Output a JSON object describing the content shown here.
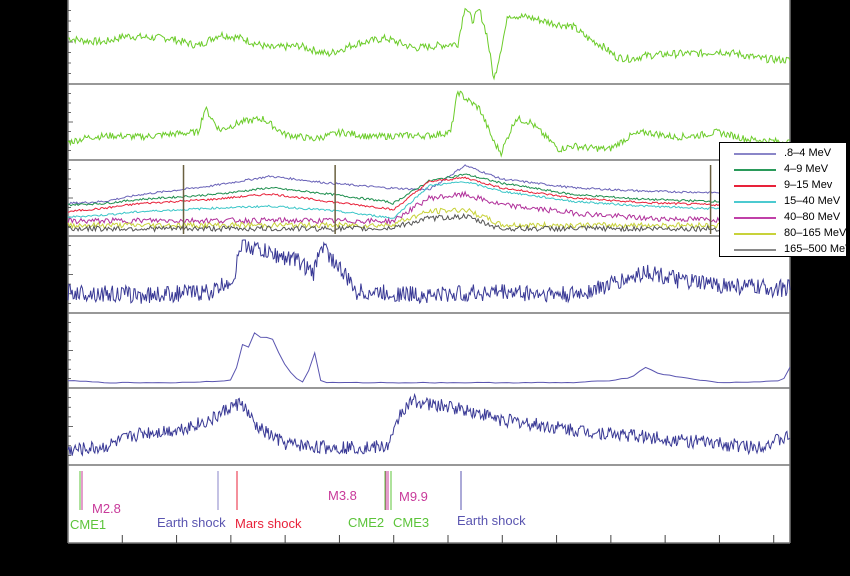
{
  "chart_data": [
    {
      "type": "line",
      "panel": 1,
      "title": "",
      "xlabel": "",
      "ylabel": "",
      "description": "Top panel: time series colored green/blue/black segments; sharp spike near x≈0.55 of axis",
      "colors": [
        "#6ccc2a",
        "#4a4a9a",
        "#111111",
        "#e8e000"
      ],
      "x": [
        0,
        0.02,
        0.05,
        0.08,
        0.11,
        0.14,
        0.18,
        0.21,
        0.24,
        0.26,
        0.28,
        0.32,
        0.36,
        0.4,
        0.44,
        0.48,
        0.52,
        0.54,
        0.55,
        0.56,
        0.57,
        0.58,
        0.59,
        0.61,
        0.64,
        0.67,
        0.7,
        0.72,
        0.74,
        0.76,
        0.78,
        0.8,
        0.83,
        0.86,
        0.88,
        0.9,
        0.93,
        0.96,
        1.0
      ],
      "y": [
        0.55,
        0.52,
        0.5,
        0.58,
        0.56,
        0.55,
        0.45,
        0.6,
        0.55,
        0.48,
        0.42,
        0.45,
        0.34,
        0.48,
        0.55,
        0.42,
        0.46,
        0.48,
        0.98,
        0.78,
        0.92,
        0.6,
        0.0,
        0.86,
        0.82,
        0.75,
        0.7,
        0.55,
        0.45,
        0.3,
        0.28,
        0.32,
        0.34,
        0.35,
        0.35,
        0.38,
        0.34,
        0.28,
        0.26
      ]
    },
    {
      "type": "line",
      "panel": 2,
      "description": "Second panel: similar multi-color series with peak near x≈0.55",
      "colors": [
        "#6ccc2a",
        "#4a4a9a",
        "#111111"
      ],
      "x": [
        0,
        0.03,
        0.06,
        0.1,
        0.14,
        0.18,
        0.19,
        0.21,
        0.24,
        0.27,
        0.3,
        0.34,
        0.38,
        0.42,
        0.46,
        0.5,
        0.53,
        0.54,
        0.55,
        0.57,
        0.59,
        0.6,
        0.62,
        0.64,
        0.66,
        0.68,
        0.7,
        0.72,
        0.75,
        0.78,
        0.8,
        0.84,
        0.87,
        0.9,
        0.94,
        1.0
      ],
      "y": [
        0.2,
        0.28,
        0.3,
        0.28,
        0.32,
        0.35,
        0.7,
        0.38,
        0.5,
        0.55,
        0.32,
        0.25,
        0.35,
        0.28,
        0.3,
        0.3,
        0.35,
        0.95,
        0.85,
        0.7,
        0.2,
        0.05,
        0.55,
        0.5,
        0.3,
        0.1,
        0.15,
        0.12,
        0.1,
        0.3,
        0.35,
        0.28,
        0.3,
        0.35,
        0.25,
        0.2
      ]
    },
    {
      "type": "line",
      "panel": 3,
      "description": "Third panel: particle intensities by energy channel",
      "legend": [
        ".8–4 MeV",
        "4–9 MeV",
        "9–15 Mev",
        "15–40 MeV",
        "40–80 MeV",
        "80–165 MeV",
        "165–500 MeV"
      ],
      "series": [
        {
          "name": ".8–4 MeV",
          "color": "#6a63b8",
          "x": [
            0,
            0.05,
            0.1,
            0.2,
            0.28,
            0.36,
            0.44,
            0.5,
            0.55,
            0.6,
            0.7,
            0.8,
            0.9,
            1.0
          ],
          "y": [
            0.42,
            0.45,
            0.55,
            0.68,
            0.82,
            0.72,
            0.65,
            0.62,
            0.98,
            0.78,
            0.65,
            0.6,
            0.58,
            0.5
          ]
        },
        {
          "name": "4–9 MeV",
          "color": "#1f8f4e",
          "x": [
            0,
            0.05,
            0.1,
            0.2,
            0.28,
            0.36,
            0.44,
            0.45,
            0.5,
            0.55,
            0.6,
            0.7,
            0.8,
            0.9,
            1.0
          ],
          "y": [
            0.4,
            0.42,
            0.48,
            0.55,
            0.65,
            0.56,
            0.45,
            0.42,
            0.75,
            0.85,
            0.72,
            0.55,
            0.48,
            0.45,
            0.38
          ]
        },
        {
          "name": "9–15 Mev",
          "color": "#e8223a",
          "x": [
            0,
            0.05,
            0.1,
            0.2,
            0.28,
            0.36,
            0.44,
            0.45,
            0.5,
            0.55,
            0.6,
            0.7,
            0.8,
            0.9,
            1.0
          ],
          "y": [
            0.3,
            0.35,
            0.42,
            0.48,
            0.56,
            0.45,
            0.35,
            0.32,
            0.74,
            0.8,
            0.65,
            0.5,
            0.43,
            0.4,
            0.38
          ]
        },
        {
          "name": "15–40 MeV",
          "color": "#3cc6c8",
          "x": [
            0,
            0.05,
            0.1,
            0.2,
            0.28,
            0.36,
            0.44,
            0.45,
            0.5,
            0.55,
            0.6,
            0.7,
            0.8,
            0.9,
            1.0
          ],
          "y": [
            0.22,
            0.25,
            0.3,
            0.35,
            0.38,
            0.32,
            0.22,
            0.2,
            0.68,
            0.74,
            0.6,
            0.45,
            0.38,
            0.34,
            0.3
          ]
        },
        {
          "name": "40–80 MeV",
          "color": "#b0309a",
          "x": [
            0,
            0.1,
            0.2,
            0.3,
            0.44,
            0.45,
            0.5,
            0.55,
            0.6,
            0.7,
            0.8,
            0.9,
            1.0
          ],
          "y": [
            0.16,
            0.17,
            0.17,
            0.17,
            0.16,
            0.16,
            0.5,
            0.55,
            0.4,
            0.28,
            0.2,
            0.18,
            0.17
          ]
        },
        {
          "name": "80–165 MeV",
          "color": "#c8d23a",
          "x": [
            0,
            0.1,
            0.2,
            0.3,
            0.44,
            0.45,
            0.5,
            0.55,
            0.58,
            0.6,
            0.7,
            0.8,
            0.9,
            1.0
          ],
          "y": [
            0.1,
            0.1,
            0.1,
            0.1,
            0.1,
            0.12,
            0.3,
            0.33,
            0.2,
            0.1,
            0.1,
            0.1,
            0.1,
            0.1
          ]
        },
        {
          "name": "165–500 MeV",
          "color": "#555555",
          "x": [
            0,
            0.1,
            0.2,
            0.3,
            0.44,
            0.45,
            0.5,
            0.55,
            0.58,
            0.6,
            0.7,
            0.8,
            0.9,
            1.0
          ],
          "y": [
            0.05,
            0.05,
            0.05,
            0.05,
            0.05,
            0.07,
            0.2,
            0.23,
            0.12,
            0.05,
            0.05,
            0.05,
            0.05,
            0.05
          ]
        }
      ]
    },
    {
      "type": "line",
      "panel": 4,
      "description": "Fourth panel: dense oscillating series, bursts near x≈0.23–0.35 and x≈0.78–0.82",
      "color": "#3a3a96",
      "x": [
        0,
        0.1,
        0.2,
        0.23,
        0.24,
        0.28,
        0.32,
        0.34,
        0.35,
        0.4,
        0.5,
        0.6,
        0.7,
        0.75,
        0.78,
        0.8,
        0.85,
        0.9,
        0.97
      ],
      "y": [
        0.25,
        0.2,
        0.25,
        0.45,
        0.95,
        0.8,
        0.7,
        0.5,
        0.95,
        0.25,
        0.2,
        0.25,
        0.2,
        0.35,
        0.45,
        0.55,
        0.4,
        0.35,
        0.3
      ]
    },
    {
      "type": "line",
      "panel": 5,
      "description": "Fifth panel: thin line with peaks near x≈0.24–0.34",
      "color": "#5a55b0",
      "x": [
        0,
        0.02,
        0.05,
        0.1,
        0.15,
        0.2,
        0.23,
        0.24,
        0.25,
        0.26,
        0.27,
        0.28,
        0.29,
        0.3,
        0.31,
        0.32,
        0.33,
        0.34,
        0.35,
        0.36,
        0.4,
        0.5,
        0.6,
        0.7,
        0.75,
        0.78,
        0.8,
        0.82,
        0.85,
        0.9,
        0.95,
        0.99,
        1.0
      ],
      "y": [
        0.05,
        0.04,
        0.02,
        0.02,
        0.02,
        0.04,
        0.06,
        0.6,
        0.55,
        0.8,
        0.65,
        0.75,
        0.5,
        0.3,
        0.15,
        0.05,
        0.02,
        0.55,
        0.05,
        0.02,
        0.02,
        0.02,
        0.02,
        0.02,
        0.05,
        0.1,
        0.25,
        0.15,
        0.1,
        0.02,
        0.03,
        0.05,
        0.25
      ]
    },
    {
      "type": "line",
      "panel": 6,
      "description": "Sixth panel: oscillating series rising to peak at x≈0.24, second rise at x≈0.45–0.48 then slow decay",
      "color": "#3a3a96",
      "x": [
        0,
        0.05,
        0.1,
        0.15,
        0.2,
        0.22,
        0.24,
        0.26,
        0.3,
        0.35,
        0.4,
        0.44,
        0.45,
        0.46,
        0.48,
        0.5,
        0.55,
        0.6,
        0.7,
        0.8,
        0.9,
        0.95,
        1.0
      ],
      "y": [
        0.15,
        0.2,
        0.4,
        0.45,
        0.6,
        0.75,
        0.85,
        0.5,
        0.25,
        0.2,
        0.2,
        0.2,
        0.35,
        0.7,
        0.88,
        0.82,
        0.75,
        0.6,
        0.45,
        0.35,
        0.25,
        0.2,
        0.35
      ]
    },
    {
      "type": "event_markers",
      "panel": 7,
      "events": [
        {
          "label": "CME1",
          "color": "#5cc43a",
          "x": 0.018
        },
        {
          "label": "M2.8",
          "color": "#c83a9a",
          "x": 0.018
        },
        {
          "label": "Earth shock",
          "color": "#5a55b0",
          "x": 0.207
        },
        {
          "label": "Mars shock",
          "color": "#e8223a",
          "x": 0.234
        },
        {
          "label": "M3.8",
          "color": "#c83a9a",
          "x": 0.44
        },
        {
          "label": "CME2",
          "color": "#5cc43a",
          "x": 0.44
        },
        {
          "label": "M9.9",
          "color": "#c83a9a",
          "x": 0.444
        },
        {
          "label": "CME3",
          "color": "#5cc43a",
          "x": 0.448
        },
        {
          "label": "Earth shock",
          "color": "#5a55b0",
          "x": 0.544
        }
      ],
      "x_ticks_count": 13
    }
  ],
  "legend": {
    "items": [
      {
        "label": ".8–4 MeV",
        "color": "#8a86c8"
      },
      {
        "label": "4–9 MeV",
        "color": "#2a9a5a"
      },
      {
        "label": "9–15 Mev",
        "color": "#e8223a"
      },
      {
        "label": "15–40 MeV",
        "color": "#4ccad0"
      },
      {
        "label": "40–80 MeV",
        "color": "#c040a8"
      },
      {
        "label": "80–165 MeV",
        "color": "#c8d23a"
      },
      {
        "label": "165–500 MeV",
        "color": "#8a8a8a"
      }
    ]
  },
  "events": {
    "cme1": "CME1",
    "m28": "M2.8",
    "earth_shock_1": "Earth shock",
    "mars_shock": "Mars shock",
    "m38": "M3.8",
    "cme2": "CME2",
    "m99": "M9.9",
    "cme3": "CME3",
    "earth_shock_2": "Earth shock"
  }
}
